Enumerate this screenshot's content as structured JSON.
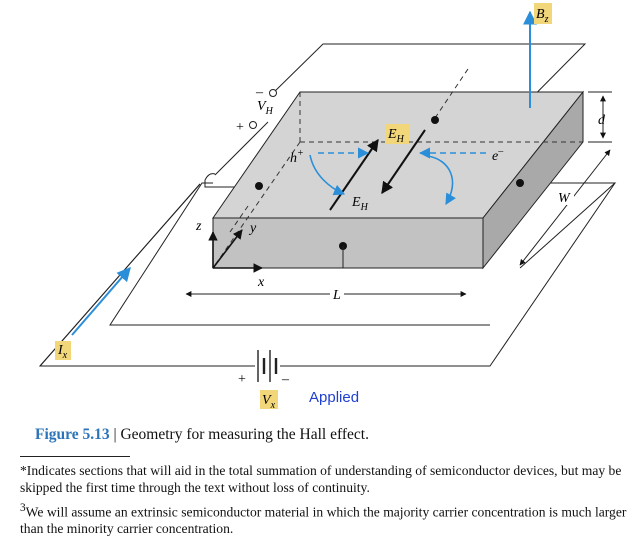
{
  "diagram": {
    "labels": {
      "vh_main": "V",
      "vh_sub": "H",
      "plus_top": "+",
      "minus_top": "–",
      "h_main": "h",
      "h_sup": "+",
      "e_main": "e",
      "e_sup": "–",
      "eh_upper_main": "E",
      "eh_upper_sub": "H",
      "eh_lower_main": "E",
      "eh_lower_sub": "H",
      "bz_main": "B",
      "bz_sub": "z",
      "d": "d",
      "w": "W",
      "l": "L",
      "x": "x",
      "y": "y",
      "z": "z",
      "ix_main": "I",
      "ix_sub": "x",
      "vx_main": "V",
      "vx_sub": "x",
      "plus_bottom": "+",
      "minus_bottom": "–",
      "applied": "Applied"
    },
    "colors": {
      "slab_top": "#d4d4d4",
      "slab_front": "#c2c2c2",
      "slab_side": "#a9a9a9",
      "arrow_blue": "#2a8fd8",
      "label_highlight": "#f2d67a",
      "applied_text": "#1f3fd0",
      "caption_blue": "#2c74b8"
    }
  },
  "caption": {
    "figure_number": "Figure 5.13",
    "separator": " | ",
    "text": "Geometry for measuring the Hall effect."
  },
  "footnotes": {
    "note1": "*Indicates sections that will aid in the total summation of understanding of semiconductor devices, but may be skipped the first time through the text without loss of continuity.",
    "note2_mark": "3",
    "note2_text": "We will assume an extrinsic semiconductor material in which the majority carrier concentration is much larger than the minority carrier concentration."
  }
}
